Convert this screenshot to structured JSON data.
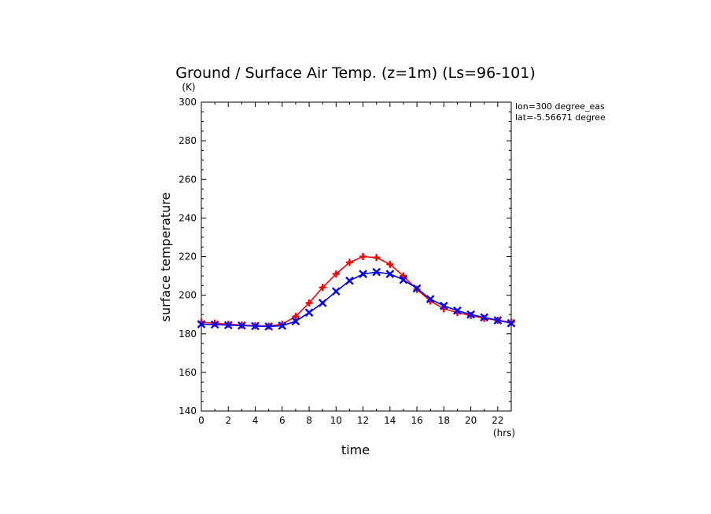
{
  "chart_data": {
    "type": "line",
    "title": "Ground / Surface Air Temp. (z=1m) (Ls=96-101)",
    "xlabel": "time",
    "ylabel": "surface temperature",
    "x_unit": "(hrs)",
    "y_unit": "(K)",
    "xlim": [
      0,
      23
    ],
    "ylim": [
      140,
      300
    ],
    "x_ticks": [
      0,
      2,
      4,
      6,
      8,
      10,
      12,
      14,
      16,
      18,
      20,
      22
    ],
    "y_ticks": [
      140,
      160,
      180,
      200,
      220,
      240,
      260,
      280,
      300
    ],
    "annotations": [
      "lon=300 degree_eas",
      "lat=-5.56671 degree"
    ],
    "grid": false,
    "x": [
      0,
      1,
      2,
      3,
      4,
      5,
      6,
      7,
      8,
      9,
      10,
      11,
      12,
      13,
      14,
      15,
      16,
      17,
      18,
      19,
      20,
      21,
      22,
      23
    ],
    "series": [
      {
        "color": "#ff0000",
        "marker": "plus",
        "values": [
          186,
          185.5,
          185,
          184.5,
          184.2,
          184,
          185,
          189,
          196,
          204,
          211,
          217,
          220,
          219.5,
          216,
          210,
          203,
          197,
          193,
          191,
          189.5,
          188,
          187,
          186
        ]
      },
      {
        "color": "#0000ff",
        "marker": "x",
        "values": [
          185,
          184.8,
          184.5,
          184.3,
          184,
          183.8,
          184.2,
          186.5,
          191,
          196,
          202,
          207.5,
          211,
          212,
          211,
          208,
          203.5,
          198,
          194.5,
          192,
          190,
          188.5,
          187,
          185.5
        ]
      }
    ]
  }
}
